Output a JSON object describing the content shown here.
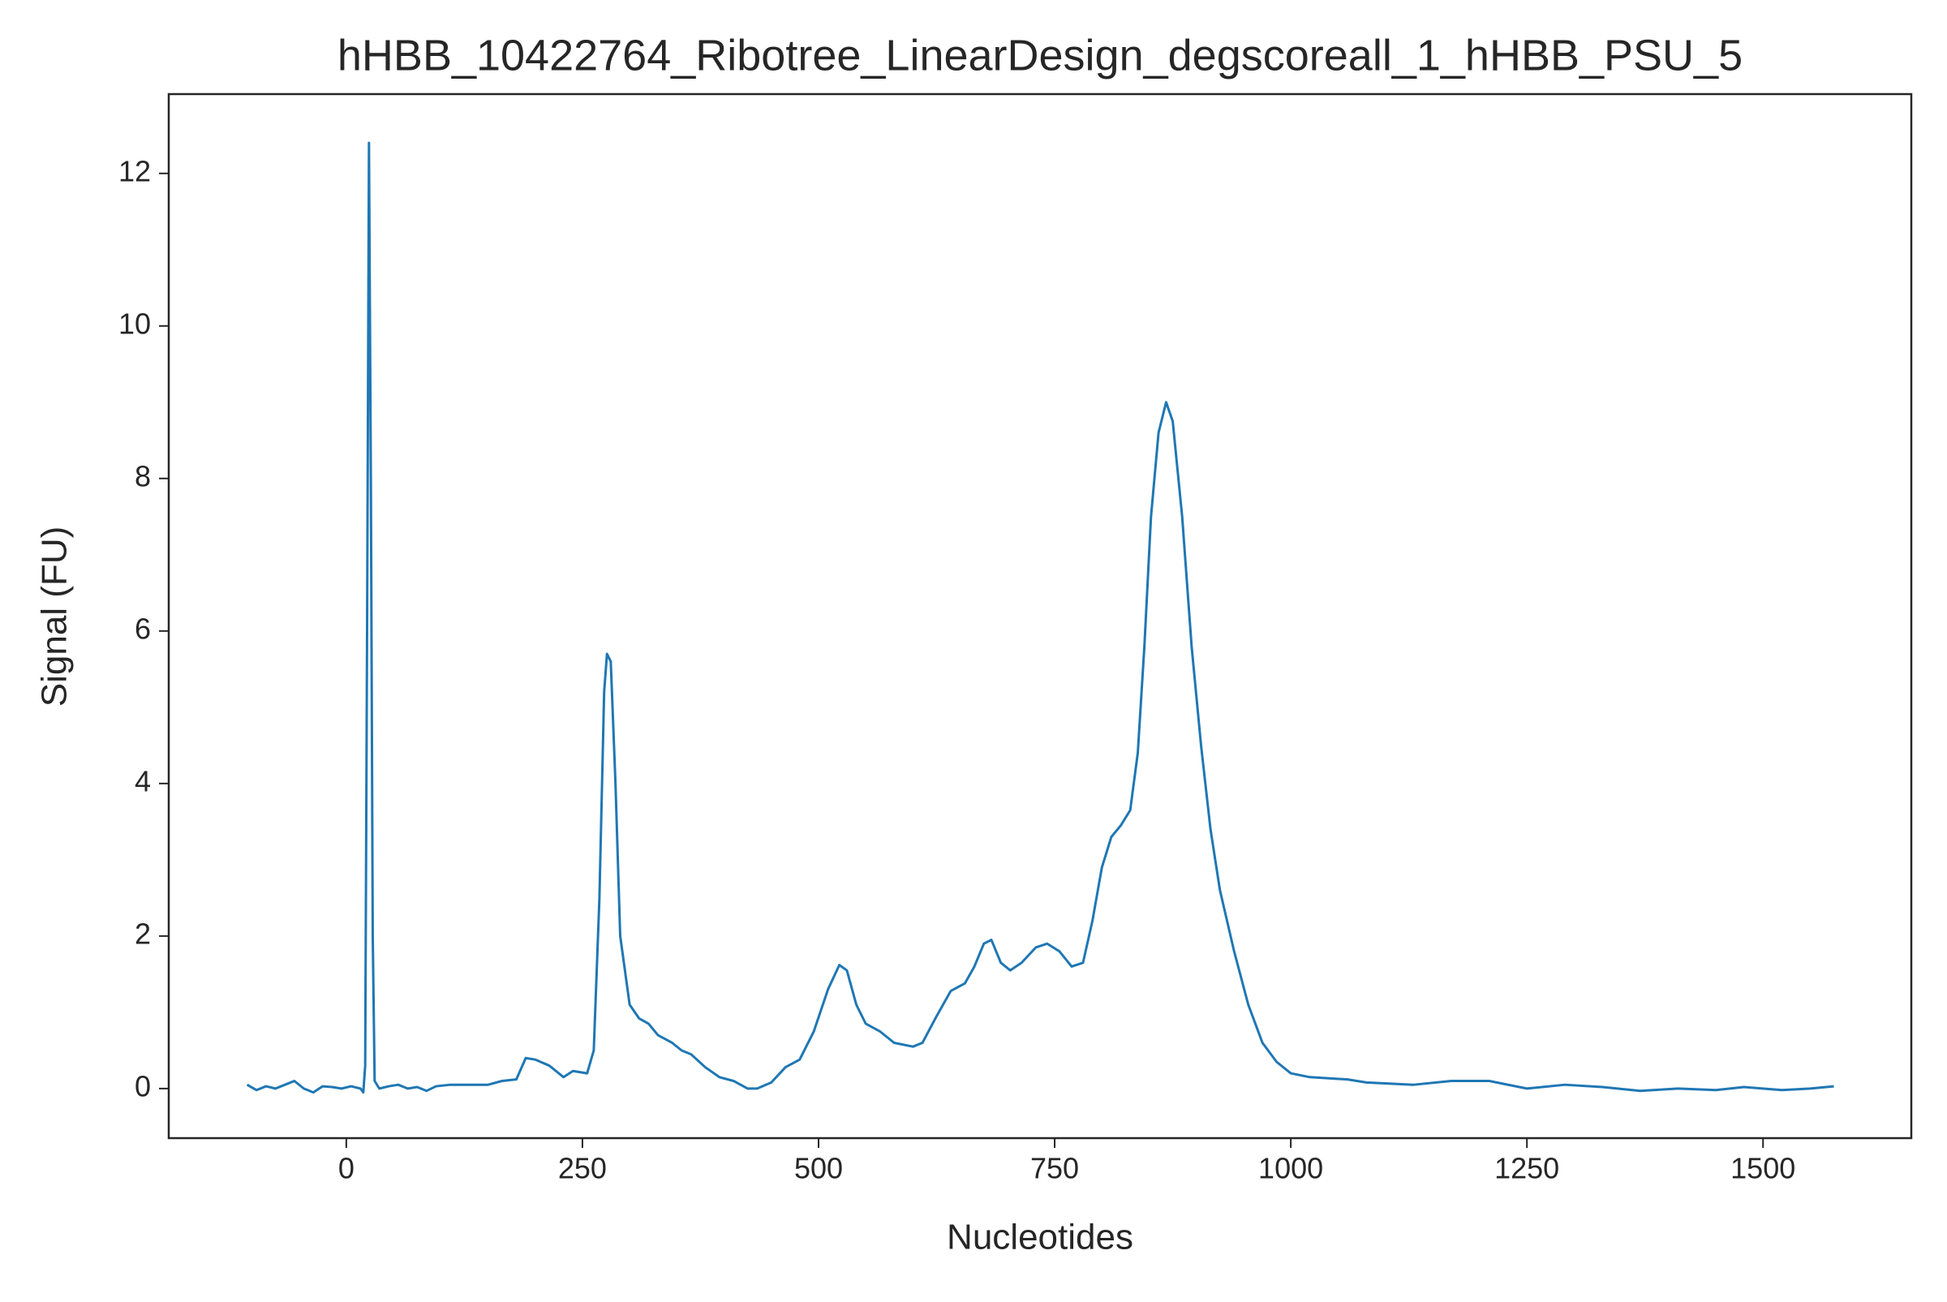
{
  "chart_data": {
    "type": "line",
    "title": "hHBB_10422764_Ribotree_LinearDesign_degscoreall_1_hHBB_PSU_5",
    "xlabel": "Nucleotides",
    "ylabel": "Signal (FU)",
    "xlim": [
      -188,
      1657
    ],
    "ylim": [
      -0.65,
      13.04
    ],
    "xticks": [
      0,
      250,
      500,
      750,
      1000,
      1250,
      1500
    ],
    "yticks": [
      0,
      2,
      4,
      6,
      8,
      10,
      12
    ],
    "grid": false,
    "x": [
      -105,
      -95,
      -85,
      -75,
      -65,
      -55,
      -45,
      -35,
      -25,
      -15,
      -5,
      5,
      15,
      18,
      20,
      22,
      24,
      26,
      28,
      30,
      35,
      45,
      55,
      65,
      75,
      85,
      95,
      110,
      130,
      150,
      165,
      180,
      190,
      200,
      215,
      230,
      240,
      255,
      262,
      268,
      273,
      276,
      280,
      285,
      290,
      300,
      310,
      320,
      330,
      345,
      355,
      365,
      380,
      395,
      410,
      425,
      435,
      450,
      465,
      480,
      495,
      510,
      522,
      530,
      540,
      550,
      565,
      580,
      600,
      610,
      625,
      640,
      655,
      665,
      675,
      683,
      693,
      703,
      715,
      730,
      742,
      755,
      768,
      780,
      790,
      800,
      810,
      820,
      830,
      838,
      845,
      852,
      860,
      868,
      875,
      885,
      895,
      905,
      915,
      925,
      940,
      955,
      970,
      985,
      1000,
      1020,
      1060,
      1080,
      1130,
      1170,
      1210,
      1250,
      1290,
      1330,
      1370,
      1410,
      1450,
      1480,
      1520,
      1550,
      1575
    ],
    "series": [
      {
        "name": "Signal",
        "color": "#1f77b4",
        "values": [
          0.05,
          -0.02,
          0.03,
          0.0,
          0.05,
          0.1,
          0.0,
          -0.05,
          0.03,
          0.02,
          0.0,
          0.03,
          0.0,
          -0.05,
          0.3,
          6,
          12.4,
          8,
          2,
          0.1,
          0.0,
          0.03,
          0.05,
          0.0,
          0.02,
          -0.03,
          0.03,
          0.05,
          0.05,
          0.05,
          0.1,
          0.12,
          0.4,
          0.38,
          0.3,
          0.15,
          0.23,
          0.2,
          0.5,
          2.5,
          5.2,
          5.7,
          5.6,
          4,
          2,
          1.1,
          0.92,
          0.85,
          0.7,
          0.6,
          0.5,
          0.45,
          0.28,
          0.15,
          0.1,
          0.0,
          0.0,
          0.08,
          0.28,
          0.38,
          0.75,
          1.3,
          1.62,
          1.55,
          1.1,
          0.85,
          0.75,
          0.6,
          0.55,
          0.6,
          0.95,
          1.28,
          1.38,
          1.6,
          1.9,
          1.95,
          1.65,
          1.55,
          1.65,
          1.85,
          1.9,
          1.8,
          1.6,
          1.65,
          2.2,
          2.9,
          3.3,
          3.45,
          3.65,
          4.4,
          5.8,
          7.5,
          8.6,
          9.0,
          8.75,
          7.5,
          5.8,
          4.5,
          3.4,
          2.6,
          1.8,
          1.1,
          0.6,
          0.35,
          0.2,
          0.15,
          0.12,
          0.08,
          0.05,
          0.1,
          0.1,
          0.0,
          0.05,
          0.02,
          -0.03,
          0.0,
          -0.02,
          0.02,
          -0.02,
          0.0,
          0.03
        ]
      }
    ]
  }
}
